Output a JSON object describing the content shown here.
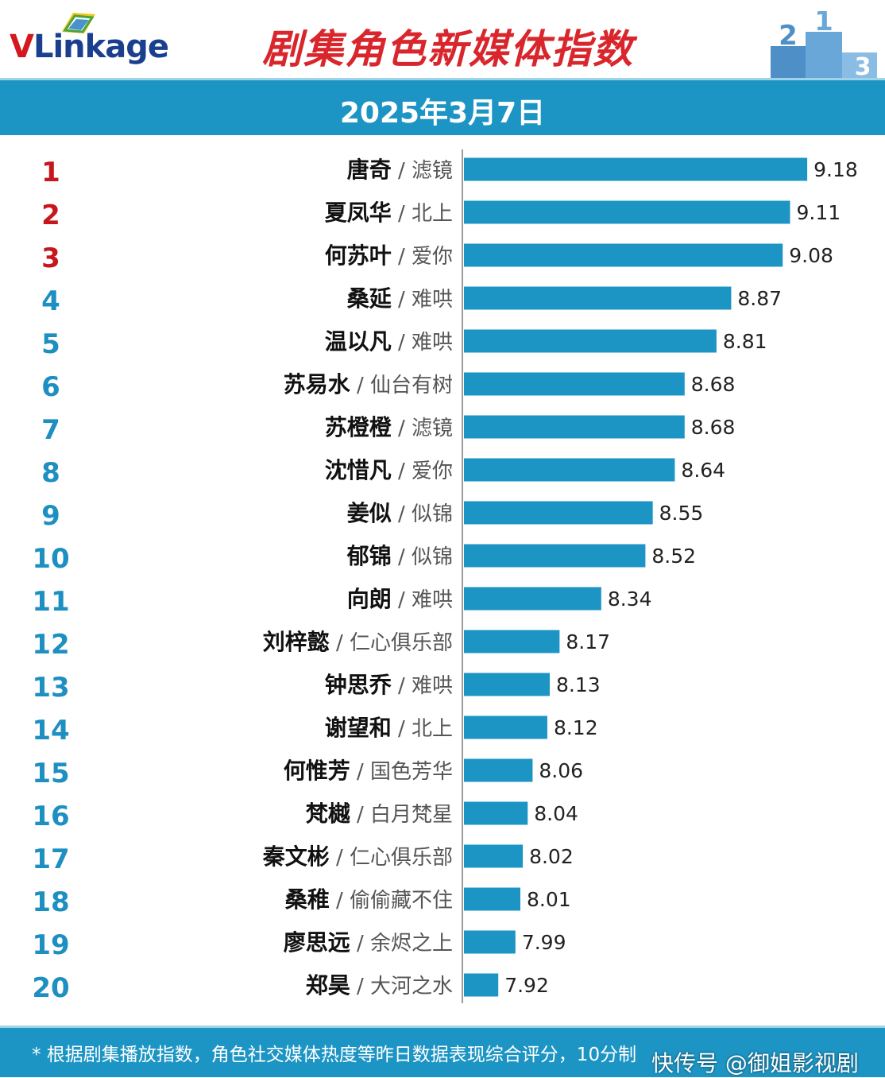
{
  "header": {
    "logo_v": "V",
    "logo_rest": "Linkage",
    "title": "剧集角色新媒体指数",
    "podium": [
      "2",
      "1",
      "3"
    ]
  },
  "date_label": "2025年3月7日",
  "colors": {
    "bar": "#1d95c4",
    "rank_top": "#c8161d",
    "rank_rest": "#1d8fc0",
    "title": "#d9262c"
  },
  "chart_data": {
    "type": "bar",
    "orientation": "horizontal",
    "title": "剧集角色新媒体指数",
    "subtitle": "2025年3月7日",
    "xlim": [
      7.78,
      9.4
    ],
    "grid": false,
    "ranks": [
      "1",
      "2",
      "3",
      "4",
      "5",
      "6",
      "7",
      "8",
      "9",
      "10",
      "11",
      "12",
      "13",
      "14",
      "15",
      "16",
      "17",
      "18",
      "19",
      "20"
    ],
    "roles": [
      "唐奇",
      "夏凤华",
      "何苏叶",
      "桑延",
      "温以凡",
      "苏易水",
      "苏橙橙",
      "沈惜凡",
      "姜似",
      "郁锦",
      "向朗",
      "刘梓懿",
      "钟思乔",
      "谢望和",
      "何惟芳",
      "梵樾",
      "秦文彬",
      "桑稚",
      "廖思远",
      "郑昊"
    ],
    "dramas": [
      "滤镜",
      "北上",
      "爱你",
      "难哄",
      "难哄",
      "仙台有树",
      "滤镜",
      "爱你",
      "似锦",
      "似锦",
      "难哄",
      "仁心俱乐部",
      "难哄",
      "北上",
      "国色芳华",
      "白月梵星",
      "仁心俱乐部",
      "偷偷藏不住",
      "余烬之上",
      "大河之水"
    ],
    "values": [
      9.18,
      9.11,
      9.08,
      8.87,
      8.81,
      8.68,
      8.68,
      8.64,
      8.55,
      8.52,
      8.34,
      8.17,
      8.13,
      8.12,
      8.06,
      8.04,
      8.02,
      8.01,
      7.99,
      7.92
    ],
    "value_labels": [
      "9.18",
      "9.11",
      "9.08",
      "8.87",
      "8.81",
      "8.68",
      "8.68",
      "8.64",
      "8.55",
      "8.52",
      "8.34",
      "8.17",
      "8.13",
      "8.12",
      "8.06",
      "8.04",
      "8.02",
      "8.01",
      "7.99",
      "7.92"
    ]
  },
  "footnote": "* 根据剧集播放指数，角色社交媒体热度等昨日数据表现综合评分，10分制",
  "watermark": "快传号 @御姐影视剧"
}
